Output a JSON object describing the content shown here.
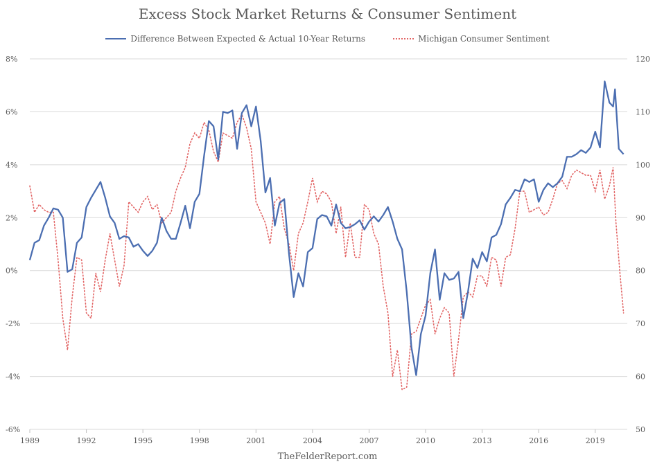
{
  "chart_data": {
    "type": "line",
    "title": "Excess Stock Market Returns & Consumer Sentiment",
    "source": "TheFelderReport.com",
    "x_tick_labels": [
      "1989",
      "1992",
      "1995",
      "1998",
      "2001",
      "2004",
      "2007",
      "2010",
      "2013",
      "2016",
      "2019"
    ],
    "y_left_ticks": [
      "8%",
      "6%",
      "4%",
      "2%",
      "0%",
      "-2%",
      "-4%",
      "-6%"
    ],
    "y_right_ticks": [
      "120",
      "110",
      "100",
      "90",
      "80",
      "70",
      "60",
      "50"
    ],
    "xlim": [
      1989.0,
      2020.7
    ],
    "ylim_left": [
      -6,
      8
    ],
    "ylim_right": [
      50,
      120
    ],
    "grid": "horizontal",
    "legend_position": "top",
    "colors": {
      "series1": "#4b6eb1",
      "series2": "#e26565",
      "grid": "#d9d9d9"
    },
    "series": [
      {
        "name": "Difference Between Expected & Actual 10-Year Returns",
        "axis": "left",
        "style": "solid",
        "points": [
          [
            1989.0,
            0.4
          ],
          [
            1989.25,
            1.05
          ],
          [
            1989.5,
            1.15
          ],
          [
            1989.75,
            1.7
          ],
          [
            1990.0,
            2.0
          ],
          [
            1990.25,
            2.35
          ],
          [
            1990.5,
            2.3
          ],
          [
            1990.75,
            2.0
          ],
          [
            1991.0,
            -0.05
          ],
          [
            1991.25,
            0.05
          ],
          [
            1991.5,
            1.05
          ],
          [
            1991.75,
            1.25
          ],
          [
            1992.0,
            2.4
          ],
          [
            1992.25,
            2.75
          ],
          [
            1992.5,
            3.05
          ],
          [
            1992.75,
            3.35
          ],
          [
            1993.0,
            2.75
          ],
          [
            1993.25,
            2.05
          ],
          [
            1993.5,
            1.8
          ],
          [
            1993.75,
            1.2
          ],
          [
            1994.0,
            1.3
          ],
          [
            1994.25,
            1.25
          ],
          [
            1994.5,
            0.9
          ],
          [
            1994.75,
            1.0
          ],
          [
            1995.0,
            0.75
          ],
          [
            1995.25,
            0.55
          ],
          [
            1995.5,
            0.75
          ],
          [
            1995.75,
            1.05
          ],
          [
            1996.0,
            2.0
          ],
          [
            1996.25,
            1.5
          ],
          [
            1996.5,
            1.2
          ],
          [
            1996.75,
            1.2
          ],
          [
            1997.0,
            1.8
          ],
          [
            1997.25,
            2.45
          ],
          [
            1997.5,
            1.6
          ],
          [
            1997.75,
            2.6
          ],
          [
            1998.0,
            2.9
          ],
          [
            1998.25,
            4.35
          ],
          [
            1998.5,
            5.65
          ],
          [
            1998.75,
            5.45
          ],
          [
            1999.0,
            4.2
          ],
          [
            1999.25,
            6.0
          ],
          [
            1999.5,
            5.95
          ],
          [
            1999.75,
            6.05
          ],
          [
            2000.0,
            4.6
          ],
          [
            2000.25,
            5.95
          ],
          [
            2000.5,
            6.25
          ],
          [
            2000.75,
            5.45
          ],
          [
            2001.0,
            6.2
          ],
          [
            2001.25,
            4.9
          ],
          [
            2001.5,
            2.95
          ],
          [
            2001.75,
            3.5
          ],
          [
            2002.0,
            1.7
          ],
          [
            2002.25,
            2.55
          ],
          [
            2002.5,
            2.7
          ],
          [
            2002.75,
            0.65
          ],
          [
            2003.0,
            -1.0
          ],
          [
            2003.25,
            -0.1
          ],
          [
            2003.5,
            -0.6
          ],
          [
            2003.75,
            0.7
          ],
          [
            2004.0,
            0.85
          ],
          [
            2004.25,
            1.95
          ],
          [
            2004.5,
            2.1
          ],
          [
            2004.75,
            2.05
          ],
          [
            2005.0,
            1.7
          ],
          [
            2005.25,
            2.5
          ],
          [
            2005.5,
            1.8
          ],
          [
            2005.75,
            1.6
          ],
          [
            2006.0,
            1.65
          ],
          [
            2006.25,
            1.75
          ],
          [
            2006.5,
            1.9
          ],
          [
            2006.75,
            1.55
          ],
          [
            2007.0,
            1.85
          ],
          [
            2007.25,
            2.05
          ],
          [
            2007.5,
            1.85
          ],
          [
            2007.75,
            2.1
          ],
          [
            2008.0,
            2.4
          ],
          [
            2008.25,
            1.85
          ],
          [
            2008.5,
            1.2
          ],
          [
            2008.75,
            0.8
          ],
          [
            2009.0,
            -0.8
          ],
          [
            2009.25,
            -2.9
          ],
          [
            2009.5,
            -3.95
          ],
          [
            2009.75,
            -2.4
          ],
          [
            2010.0,
            -1.7
          ],
          [
            2010.25,
            -0.1
          ],
          [
            2010.5,
            0.8
          ],
          [
            2010.75,
            -1.1
          ],
          [
            2011.0,
            -0.1
          ],
          [
            2011.25,
            -0.35
          ],
          [
            2011.5,
            -0.3
          ],
          [
            2011.75,
            -0.05
          ],
          [
            2012.0,
            -1.8
          ],
          [
            2012.25,
            -0.8
          ],
          [
            2012.5,
            0.45
          ],
          [
            2012.75,
            0.1
          ],
          [
            2013.0,
            0.7
          ],
          [
            2013.25,
            0.35
          ],
          [
            2013.5,
            1.25
          ],
          [
            2013.75,
            1.35
          ],
          [
            2014.0,
            1.75
          ],
          [
            2014.25,
            2.5
          ],
          [
            2014.5,
            2.75
          ],
          [
            2014.75,
            3.05
          ],
          [
            2015.0,
            3.0
          ],
          [
            2015.25,
            3.45
          ],
          [
            2015.5,
            3.35
          ],
          [
            2015.75,
            3.45
          ],
          [
            2016.0,
            2.6
          ],
          [
            2016.25,
            3.05
          ],
          [
            2016.5,
            3.3
          ],
          [
            2016.75,
            3.15
          ],
          [
            2017.0,
            3.3
          ],
          [
            2017.25,
            3.55
          ],
          [
            2017.5,
            4.3
          ],
          [
            2017.75,
            4.3
          ],
          [
            2018.0,
            4.4
          ],
          [
            2018.25,
            4.55
          ],
          [
            2018.5,
            4.45
          ],
          [
            2018.75,
            4.65
          ],
          [
            2019.0,
            5.25
          ],
          [
            2019.25,
            4.65
          ],
          [
            2019.5,
            7.15
          ],
          [
            2019.75,
            6.35
          ],
          [
            2019.95,
            6.2
          ],
          [
            2020.05,
            6.85
          ],
          [
            2020.25,
            4.6
          ],
          [
            2020.5,
            4.4
          ]
        ]
      },
      {
        "name": "Michigan Consumer Sentiment",
        "axis": "right",
        "style": "dotted",
        "points": [
          [
            1989.0,
            96
          ],
          [
            1989.25,
            91
          ],
          [
            1989.5,
            92.5
          ],
          [
            1989.75,
            91.5
          ],
          [
            1990.0,
            91
          ],
          [
            1990.25,
            91
          ],
          [
            1990.5,
            82
          ],
          [
            1990.75,
            71
          ],
          [
            1991.0,
            65
          ],
          [
            1991.25,
            75
          ],
          [
            1991.5,
            82.5
          ],
          [
            1991.75,
            82
          ],
          [
            1992.0,
            72
          ],
          [
            1992.25,
            71
          ],
          [
            1992.5,
            79.5
          ],
          [
            1992.75,
            76
          ],
          [
            1993.0,
            82
          ],
          [
            1993.25,
            87
          ],
          [
            1993.5,
            82
          ],
          [
            1993.75,
            77
          ],
          [
            1994.0,
            81
          ],
          [
            1994.25,
            93
          ],
          [
            1994.5,
            92
          ],
          [
            1994.75,
            91
          ],
          [
            1995.0,
            93
          ],
          [
            1995.25,
            94
          ],
          [
            1995.5,
            91.5
          ],
          [
            1995.75,
            92.5
          ],
          [
            1996.0,
            89
          ],
          [
            1996.25,
            90
          ],
          [
            1996.5,
            91
          ],
          [
            1996.75,
            95
          ],
          [
            1997.0,
            97.5
          ],
          [
            1997.25,
            99.5
          ],
          [
            1997.5,
            104
          ],
          [
            1997.75,
            106
          ],
          [
            1998.0,
            105
          ],
          [
            1998.25,
            108
          ],
          [
            1998.5,
            106.5
          ],
          [
            1998.75,
            102.5
          ],
          [
            1999.0,
            100.5
          ],
          [
            1999.25,
            106
          ],
          [
            1999.5,
            105.5
          ],
          [
            1999.75,
            105
          ],
          [
            2000.0,
            108
          ],
          [
            2000.25,
            109.5
          ],
          [
            2000.5,
            107
          ],
          [
            2000.75,
            103
          ],
          [
            2001.0,
            93
          ],
          [
            2001.25,
            91
          ],
          [
            2001.5,
            89
          ],
          [
            2001.75,
            85
          ],
          [
            2002.0,
            93
          ],
          [
            2002.25,
            94
          ],
          [
            2002.5,
            88
          ],
          [
            2002.75,
            85
          ],
          [
            2003.0,
            80
          ],
          [
            2003.25,
            87
          ],
          [
            2003.5,
            89
          ],
          [
            2003.75,
            93
          ],
          [
            2004.0,
            97.5
          ],
          [
            2004.25,
            93
          ],
          [
            2004.5,
            95
          ],
          [
            2004.75,
            94.5
          ],
          [
            2005.0,
            93
          ],
          [
            2005.25,
            87
          ],
          [
            2005.5,
            92
          ],
          [
            2005.75,
            82.5
          ],
          [
            2006.0,
            89
          ],
          [
            2006.25,
            82.5
          ],
          [
            2006.5,
            82.5
          ],
          [
            2006.75,
            92.5
          ],
          [
            2007.0,
            91.5
          ],
          [
            2007.25,
            87
          ],
          [
            2007.5,
            85
          ],
          [
            2007.75,
            77
          ],
          [
            2008.0,
            72
          ],
          [
            2008.25,
            60
          ],
          [
            2008.5,
            65
          ],
          [
            2008.75,
            57.5
          ],
          [
            2009.0,
            58
          ],
          [
            2009.25,
            68
          ],
          [
            2009.5,
            68.5
          ],
          [
            2009.75,
            71
          ],
          [
            2010.0,
            73.5
          ],
          [
            2010.25,
            74.5
          ],
          [
            2010.5,
            68
          ],
          [
            2010.75,
            71
          ],
          [
            2011.0,
            73
          ],
          [
            2011.25,
            72
          ],
          [
            2011.5,
            60
          ],
          [
            2011.75,
            67
          ],
          [
            2012.0,
            75
          ],
          [
            2012.25,
            76
          ],
          [
            2012.5,
            75
          ],
          [
            2012.75,
            79
          ],
          [
            2013.0,
            79
          ],
          [
            2013.25,
            77
          ],
          [
            2013.5,
            82.5
          ],
          [
            2013.75,
            82
          ],
          [
            2014.0,
            77
          ],
          [
            2014.25,
            82.5
          ],
          [
            2014.5,
            83
          ],
          [
            2014.75,
            88
          ],
          [
            2015.0,
            95
          ],
          [
            2015.25,
            95
          ],
          [
            2015.5,
            91
          ],
          [
            2015.75,
            91.5
          ],
          [
            2016.0,
            92
          ],
          [
            2016.25,
            90.5
          ],
          [
            2016.5,
            91
          ],
          [
            2016.75,
            93.5
          ],
          [
            2017.0,
            96.5
          ],
          [
            2017.25,
            97
          ],
          [
            2017.5,
            95.5
          ],
          [
            2017.75,
            98
          ],
          [
            2018.0,
            99
          ],
          [
            2018.25,
            98.5
          ],
          [
            2018.5,
            98
          ],
          [
            2018.75,
            98
          ],
          [
            2019.0,
            95
          ],
          [
            2019.25,
            99
          ],
          [
            2019.5,
            93.5
          ],
          [
            2019.75,
            96
          ],
          [
            2019.95,
            99.5
          ],
          [
            2020.1,
            89
          ],
          [
            2020.3,
            80
          ],
          [
            2020.5,
            72
          ]
        ]
      }
    ]
  }
}
